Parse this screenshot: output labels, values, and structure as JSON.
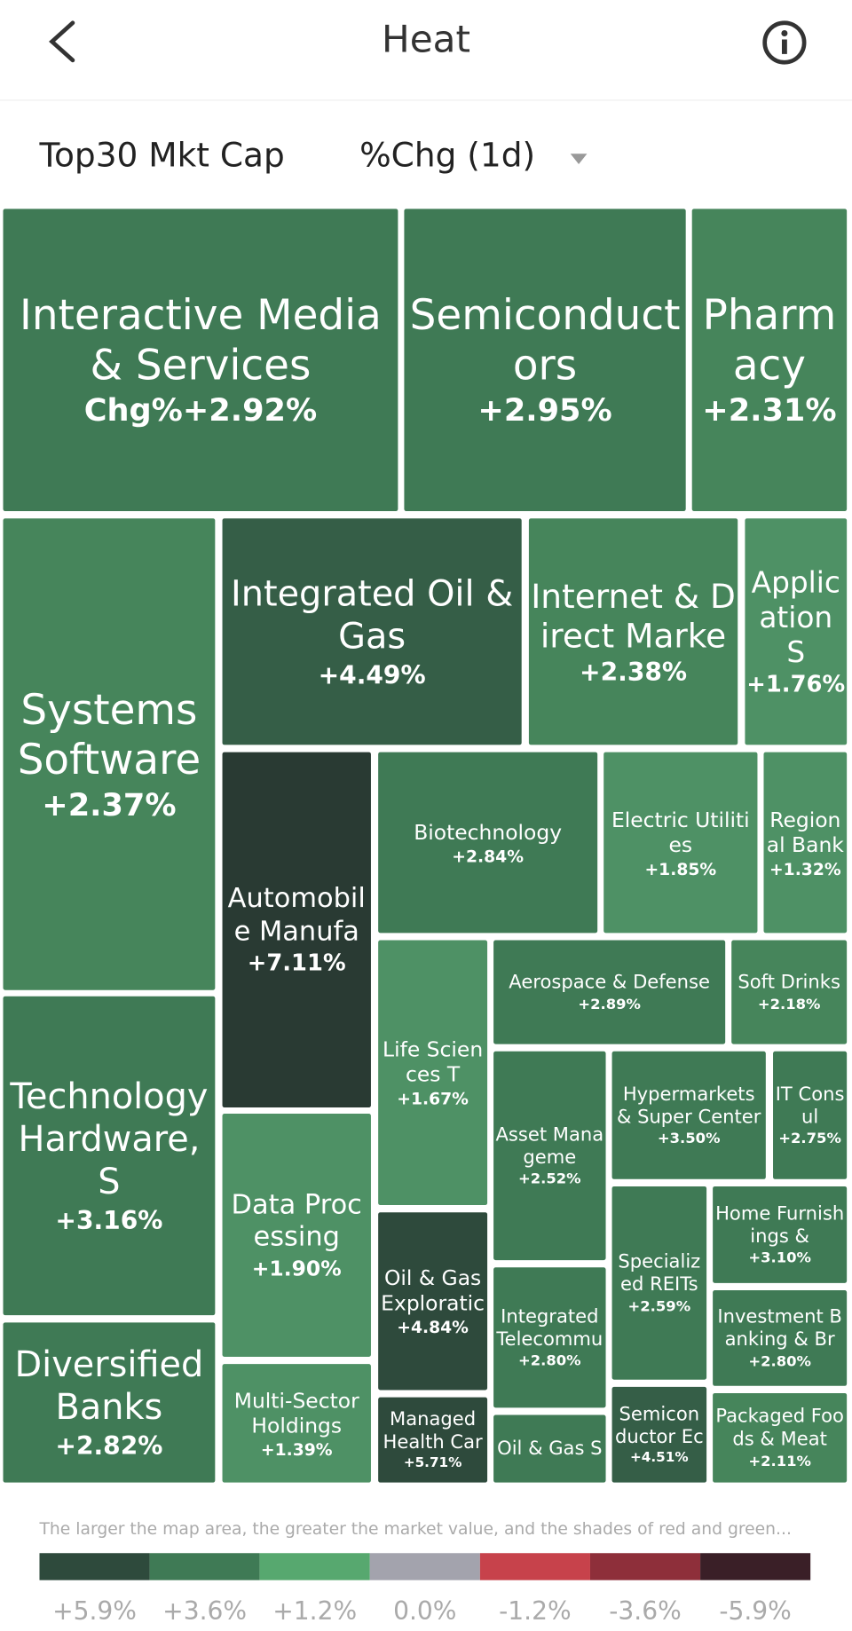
{
  "header": {
    "title": "Heat"
  },
  "filters": {
    "universe": "Top30 Mkt Cap",
    "metric": "%Chg (1d)"
  },
  "chart_data": {
    "type": "treemap",
    "tiles": [
      {
        "name": "Interactive Media & Services",
        "value": 2.92,
        "value_label": "Chg%+2.92%",
        "color": "#3f7a55"
      },
      {
        "name": "Semiconductors",
        "value": 2.95,
        "value_label": "+2.95%",
        "color": "#3f7a55"
      },
      {
        "name": "Pharmacy",
        "value": 2.31,
        "value_label": "+2.31%",
        "color": "#46855b"
      },
      {
        "name": "Systems Software",
        "value": 2.37,
        "value_label": "+2.37%",
        "color": "#46855b"
      },
      {
        "name": "Integrated Oil & Gas",
        "value": 4.49,
        "value_label": "+4.49%",
        "color": "#355e47"
      },
      {
        "name": "Internet & Direct Marke",
        "value": 2.38,
        "value_label": "+2.38%",
        "color": "#46855b"
      },
      {
        "name": "Application S",
        "value": 1.76,
        "value_label": "+1.76%",
        "color": "#4e9165"
      },
      {
        "name": "Automobile Manufa",
        "value": 7.11,
        "value_label": "+7.11%",
        "color": "#293a33"
      },
      {
        "name": "Biotechnology",
        "value": 2.84,
        "value_label": "+2.84%",
        "color": "#3f7a55"
      },
      {
        "name": "Electric Utilities",
        "value": 1.85,
        "value_label": "+1.85%",
        "color": "#4e9165"
      },
      {
        "name": "Regional Bank",
        "value": 1.32,
        "value_label": "+1.32%",
        "color": "#4e9165"
      },
      {
        "name": "Technology Hardware, S",
        "value": 3.16,
        "value_label": "+3.16%",
        "color": "#3f7a55"
      },
      {
        "name": "Life Sciences T",
        "value": 1.67,
        "value_label": "+1.67%",
        "color": "#4e9165"
      },
      {
        "name": "Aerospace & Defense",
        "value": 2.89,
        "value_label": "+2.89%",
        "color": "#3f7a55"
      },
      {
        "name": "Soft Drinks",
        "value": 2.18,
        "value_label": "+2.18%",
        "color": "#46855b"
      },
      {
        "name": "Data Processing",
        "value": 1.9,
        "value_label": "+1.90%",
        "color": "#4e9165"
      },
      {
        "name": "Asset Manageme",
        "value": 2.52,
        "value_label": "+2.52%",
        "color": "#3f7a55"
      },
      {
        "name": "Hypermarkets & Super Center",
        "value": 3.5,
        "value_label": "+3.50%",
        "color": "#3f7a55"
      },
      {
        "name": "IT Consul",
        "value": 2.75,
        "value_label": "+2.75%",
        "color": "#3f7a55"
      },
      {
        "name": "Oil & Gas Exploratic",
        "value": 4.84,
        "value_label": "+4.84%",
        "color": "#2e4a3c"
      },
      {
        "name": "Specialized REITs",
        "value": 2.59,
        "value_label": "+2.59%",
        "color": "#3f7a55"
      },
      {
        "name": "Home Furnishings &",
        "value": 3.1,
        "value_label": "+3.10%",
        "color": "#3f7a55"
      },
      {
        "name": "Integrated Telecommu",
        "value": 2.8,
        "value_label": "+2.80%",
        "color": "#3f7a55"
      },
      {
        "name": "Investment Banking & Br",
        "value": 2.8,
        "value_label": "+2.80%",
        "color": "#3f7a55"
      },
      {
        "name": "Diversified Banks",
        "value": 2.82,
        "value_label": "+2.82%",
        "color": "#3f7a55"
      },
      {
        "name": "Multi-Sector Holdings",
        "value": 1.39,
        "value_label": "+1.39%",
        "color": "#4e9165"
      },
      {
        "name": "Managed Health Car",
        "value": 5.71,
        "value_label": "+5.71%",
        "color": "#2e4a3c"
      },
      {
        "name": "Oil & Gas S",
        "color": "#3f7a55"
      },
      {
        "name": "Semiconductor Ec",
        "value": 4.51,
        "value_label": "+4.51%",
        "color": "#355e47"
      },
      {
        "name": "Packaged Foods & Meat",
        "value": 2.11,
        "value_label": "+2.11%",
        "color": "#46855b"
      }
    ]
  },
  "legend": {
    "note": "The larger the map area, the greater the market value, and the shades of red and green...",
    "colors": [
      "#2e4a3c",
      "#3f7a55",
      "#57a86f",
      "#a3a3ad",
      "#c7424b",
      "#8e2f3a",
      "#3a1f27"
    ],
    "values": [
      5.9,
      3.6,
      1.2,
      0.0,
      -1.2,
      -3.6,
      -5.9
    ],
    "value_labels": [
      "+5.9%",
      "+3.6%",
      "+1.2%",
      "0.0%",
      "-1.2%",
      "-3.6%",
      "-5.9%"
    ]
  }
}
